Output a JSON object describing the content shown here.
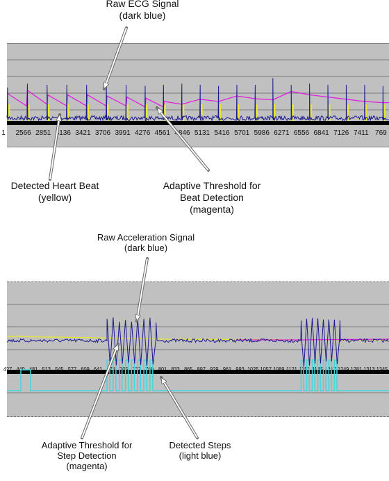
{
  "labels": {
    "ecg_raw_title": "Raw ECG Signal",
    "ecg_raw_color": "(dark blue)",
    "heartbeat_title": "Detected Heart Beat",
    "heartbeat_color": "(yellow)",
    "adaptive_beat_title_1": "Adaptive Threshold for",
    "adaptive_beat_title_2": "Beat Detection",
    "adaptive_beat_color": "(magenta)",
    "acc_raw_title": "Raw Acceleration Signal",
    "acc_raw_color": "(dark blue)",
    "adaptive_step_title_1": "Adaptive Threshold for",
    "adaptive_step_title_2": "Step Detection",
    "adaptive_step_color": "(magenta)",
    "steps_title": "Detected Steps",
    "steps_color": "(light blue)"
  },
  "colors": {
    "panel_bg": "#c0c0c0",
    "raw_signal": "#1a1a8c",
    "threshold": "#e020e0",
    "heartbeat": "#e8e830",
    "steps": "#40d8e0",
    "baseline": "#000000"
  },
  "chart_data": [
    {
      "type": "line",
      "name": "ecg",
      "x_ticks": [
        "1",
        "2566",
        "2851",
        "3136",
        "3421",
        "3706",
        "3991",
        "4276",
        "4561",
        "4846",
        "5131",
        "5416",
        "5701",
        "5986",
        "6271",
        "6556",
        "6841",
        "7126",
        "7411",
        "769"
      ],
      "x_range": [
        2281,
        7696
      ],
      "beat_positions": [
        2290,
        2570,
        2850,
        3130,
        3410,
        3690,
        3970,
        4240,
        4500,
        4760,
        5020,
        5280,
        5540,
        5800,
        6050,
        6310,
        6570,
        6830,
        7090,
        7350,
        7610
      ],
      "beat_peaks": [
        0.55,
        0.62,
        0.6,
        0.6,
        0.6,
        0.6,
        0.6,
        0.58,
        0.6,
        0.62,
        0.6,
        0.58,
        0.6,
        0.6,
        0.72,
        0.6,
        0.62,
        0.6,
        0.6,
        0.6,
        0.58
      ],
      "threshold_profile": [
        [
          2281,
          0.45
        ],
        [
          2560,
          0.22
        ],
        [
          2570,
          0.5
        ],
        [
          2850,
          0.25
        ],
        [
          2860,
          0.42
        ],
        [
          3130,
          0.22
        ],
        [
          3140,
          0.42
        ],
        [
          3410,
          0.22
        ],
        [
          3420,
          0.42
        ],
        [
          3690,
          0.22
        ],
        [
          3700,
          0.4
        ],
        [
          3970,
          0.22
        ],
        [
          3980,
          0.38
        ],
        [
          4240,
          0.2
        ],
        [
          4250,
          0.36
        ],
        [
          4500,
          0.2
        ],
        [
          4510,
          0.3
        ],
        [
          4760,
          0.25
        ],
        [
          5020,
          0.34
        ],
        [
          5280,
          0.3
        ],
        [
          5540,
          0.4
        ],
        [
          5800,
          0.35
        ],
        [
          6050,
          0.33
        ],
        [
          6310,
          0.48
        ],
        [
          6570,
          0.42
        ],
        [
          6830,
          0.38
        ],
        [
          7090,
          0.34
        ],
        [
          7350,
          0.3
        ],
        [
          7610,
          0.28
        ],
        [
          7696,
          0.28
        ]
      ]
    },
    {
      "type": "line",
      "name": "acceleration",
      "x_ticks": [
        "4?7",
        "449",
        "481",
        "513",
        "545",
        "577",
        "609",
        "641",
        "673",
        "705",
        "737",
        "769",
        "801",
        "833",
        "865",
        "897",
        "929",
        "961",
        "993",
        "1025",
        "1057",
        "1089",
        "1121",
        "1153",
        "1185",
        "1217",
        "1249",
        "1281",
        "1313",
        "1345"
      ],
      "x_range": [
        415,
        1350
      ],
      "step_bursts": [
        {
          "start": 660,
          "end": 780,
          "count": 8
        },
        {
          "start": 1135,
          "end": 1230,
          "count": 7
        }
      ]
    }
  ]
}
